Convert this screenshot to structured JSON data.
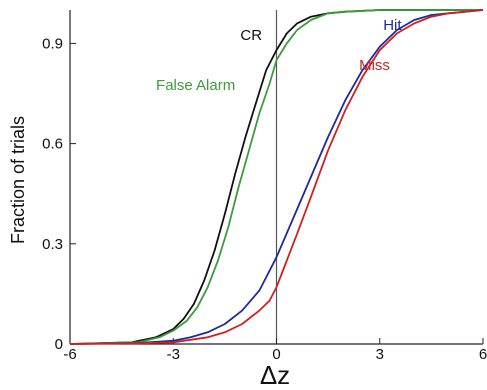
{
  "chart_data": {
    "type": "line",
    "title": "",
    "xlabel": "Δz",
    "ylabel": "Fraction of trials",
    "xlim": [
      -6,
      6
    ],
    "ylim": [
      0,
      1
    ],
    "x_ticks": [
      "-6",
      "-3",
      "0",
      "3",
      "6"
    ],
    "x_tick_values": [
      -6,
      -3,
      0,
      3,
      6
    ],
    "y_ticks": [
      "0",
      "0.3",
      "0.6",
      "0.9"
    ],
    "y_tick_values": [
      0,
      0.3,
      0.6,
      0.9
    ],
    "grid": false,
    "reference_line_x": 0,
    "series": [
      {
        "name": "CR",
        "color": "#111111",
        "label_anchor": [
          -1.05,
          0.91
        ],
        "x": [
          -6,
          -4.2,
          -3.5,
          -3.0,
          -2.7,
          -2.4,
          -2.1,
          -1.8,
          -1.5,
          -1.2,
          -0.9,
          -0.6,
          -0.3,
          0,
          0.3,
          0.6,
          1.0,
          1.5,
          2.0,
          3.0,
          6
        ],
        "y": [
          0,
          0.005,
          0.02,
          0.045,
          0.075,
          0.12,
          0.19,
          0.28,
          0.39,
          0.51,
          0.62,
          0.72,
          0.82,
          0.88,
          0.93,
          0.96,
          0.98,
          0.99,
          0.995,
          1.0,
          1.0
        ]
      },
      {
        "name": "False Alarm",
        "color": "#3c9c3c",
        "label_anchor": [
          -3.5,
          0.76
        ],
        "x": [
          -6,
          -4.0,
          -3.4,
          -3.0,
          -2.6,
          -2.3,
          -2.0,
          -1.7,
          -1.4,
          -1.1,
          -0.8,
          -0.5,
          -0.2,
          0,
          0.3,
          0.6,
          1.0,
          1.5,
          2.0,
          3.0,
          6
        ],
        "y": [
          0,
          0.005,
          0.02,
          0.04,
          0.07,
          0.11,
          0.17,
          0.25,
          0.35,
          0.47,
          0.58,
          0.69,
          0.78,
          0.85,
          0.9,
          0.94,
          0.97,
          0.99,
          0.995,
          1.0,
          1.0
        ]
      },
      {
        "name": "Hit",
        "color": "#1f2a9c",
        "label_anchor": [
          3.1,
          0.94
        ],
        "x": [
          -6,
          -4.0,
          -3.0,
          -2.5,
          -2.0,
          -1.5,
          -1.0,
          -0.5,
          0,
          0.5,
          1.0,
          1.5,
          2.0,
          2.5,
          3.0,
          3.5,
          4.0,
          4.5,
          5.0,
          5.5,
          6
        ],
        "y": [
          0,
          0.003,
          0.01,
          0.02,
          0.035,
          0.06,
          0.1,
          0.16,
          0.26,
          0.38,
          0.5,
          0.62,
          0.73,
          0.82,
          0.89,
          0.94,
          0.97,
          0.985,
          0.99,
          0.995,
          1.0
        ]
      },
      {
        "name": "Miss",
        "color": "#cc2222",
        "label_anchor": [
          2.4,
          0.82
        ],
        "x": [
          -6,
          -4.0,
          -3.0,
          -2.0,
          -1.5,
          -1.0,
          -0.5,
          -0.2,
          0,
          0.3,
          0.6,
          1.0,
          1.5,
          2.0,
          2.5,
          3.0,
          3.5,
          4.0,
          4.5,
          5.0,
          6
        ],
        "y": [
          0,
          0.002,
          0.005,
          0.02,
          0.035,
          0.06,
          0.1,
          0.13,
          0.17,
          0.25,
          0.33,
          0.44,
          0.58,
          0.7,
          0.8,
          0.88,
          0.93,
          0.96,
          0.98,
          0.99,
          1.0
        ]
      }
    ]
  }
}
